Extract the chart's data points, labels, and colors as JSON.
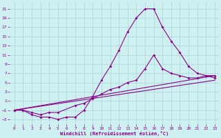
{
  "xlabel": "Windchill (Refroidissement éolien,°C)",
  "background_color": "#cff0f0",
  "grid_color": "#aad4d4",
  "line_color": "#880088",
  "xlim": [
    -0.5,
    23.5
  ],
  "ylim": [
    -4,
    22.5
  ],
  "yticks": [
    -3,
    -1,
    1,
    3,
    5,
    7,
    9,
    11,
    13,
    15,
    17,
    19,
    21
  ],
  "xticks": [
    0,
    1,
    2,
    3,
    4,
    5,
    6,
    7,
    8,
    9,
    10,
    11,
    12,
    13,
    14,
    15,
    16,
    17,
    18,
    19,
    20,
    21,
    22,
    23
  ],
  "line1_x": [
    0,
    1,
    2,
    3,
    4,
    5,
    6,
    7,
    8,
    9,
    10,
    11,
    12,
    13,
    14,
    15,
    16,
    17,
    18,
    19,
    20,
    21,
    22,
    23
  ],
  "line1_y": [
    -1,
    -1,
    -2,
    -2.5,
    -2.5,
    -3,
    -2.5,
    -2.5,
    -1,
    2,
    5.5,
    8.5,
    12,
    16,
    19,
    21,
    21,
    17,
    14,
    11.5,
    8.5,
    7,
    6.5,
    6
  ],
  "line2_x": [
    0,
    23
  ],
  "line2_y": [
    -1,
    6.5
  ],
  "line3_x": [
    0,
    23
  ],
  "line3_y": [
    -1,
    5.5
  ],
  "line4_x": [
    0,
    1,
    2,
    3,
    4,
    5,
    7,
    8,
    9,
    10,
    11,
    12,
    13,
    14,
    15,
    16,
    17,
    18,
    19,
    20,
    21,
    22,
    23
  ],
  "line4_y": [
    -1,
    -1,
    -1.5,
    -2,
    -1.5,
    -1.5,
    0,
    0.5,
    1.5,
    2.5,
    3.5,
    4,
    5,
    5.5,
    8,
    11,
    8,
    7,
    6.5,
    6,
    6,
    6.5,
    6.5
  ]
}
